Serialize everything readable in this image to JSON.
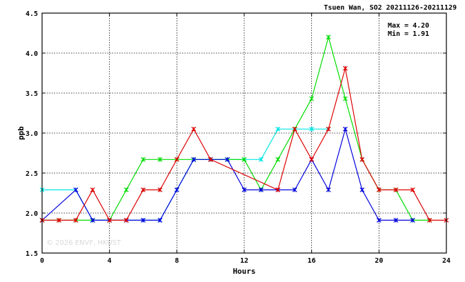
{
  "chart_data": {
    "type": "line",
    "title": "Tsuen Wan, SO2 20211126-20211129",
    "xlabel": "Hours",
    "ylabel": "ppb",
    "xlim": [
      0,
      24
    ],
    "ylim": [
      1.5,
      4.5
    ],
    "x_ticks": [
      "0",
      "4",
      "8",
      "12",
      "16",
      "20",
      "24"
    ],
    "y_ticks": [
      "1.5",
      "2.0",
      "2.5",
      "3.0",
      "3.5",
      "4.0",
      "4.5"
    ],
    "grid": true,
    "stats": {
      "max": "Max = 4.20",
      "min": "Min = 1.91"
    },
    "watermark": "© 2026 ENVF, HKUST",
    "series": [
      {
        "color": "#00e5e5",
        "x": [
          0,
          2,
          3,
          4,
          5,
          6,
          7,
          8,
          9,
          10,
          11,
          12,
          13,
          14,
          15,
          16,
          17
        ],
        "y": [
          2.29,
          2.29,
          1.91,
          1.91,
          1.91,
          1.91,
          1.91,
          2.29,
          2.67,
          2.67,
          2.67,
          2.67,
          2.67,
          3.05,
          3.05,
          3.05,
          3.05
        ]
      },
      {
        "color": "#00dd00",
        "x": [
          0,
          1,
          2,
          3,
          4,
          5,
          6,
          7,
          8,
          9,
          10,
          11,
          12,
          13,
          14,
          15,
          16,
          17,
          18,
          19,
          20,
          21,
          22,
          23
        ],
        "y": [
          1.91,
          1.91,
          1.91,
          1.91,
          1.91,
          2.29,
          2.67,
          2.67,
          2.67,
          2.67,
          2.67,
          2.67,
          2.67,
          2.29,
          2.67,
          3.05,
          3.43,
          4.2,
          3.43,
          2.67,
          2.29,
          2.29,
          1.91,
          1.91
        ]
      },
      {
        "color": "#0000dd",
        "x": [
          0,
          2,
          3,
          4,
          5,
          6,
          7,
          8,
          9,
          10,
          11,
          12,
          13,
          14,
          15,
          16,
          17,
          18,
          19,
          20,
          21,
          22
        ],
        "y": [
          1.91,
          2.29,
          1.91,
          1.91,
          1.91,
          1.91,
          1.91,
          2.29,
          2.67,
          2.67,
          2.67,
          2.29,
          2.29,
          2.29,
          2.29,
          2.67,
          2.29,
          3.05,
          2.29,
          1.91,
          1.91,
          1.91
        ]
      },
      {
        "color": "#dd0000",
        "x": [
          0,
          1,
          2,
          3,
          4,
          5,
          6,
          7,
          8,
          9,
          10,
          14,
          15,
          16,
          17,
          18,
          19,
          20,
          21,
          22,
          23,
          24
        ],
        "y": [
          1.91,
          1.91,
          1.91,
          2.29,
          1.91,
          1.91,
          2.29,
          2.29,
          2.67,
          3.05,
          2.67,
          2.29,
          3.05,
          2.67,
          3.05,
          3.81,
          2.67,
          2.29,
          2.29,
          2.29,
          1.91,
          1.91
        ]
      }
    ]
  }
}
